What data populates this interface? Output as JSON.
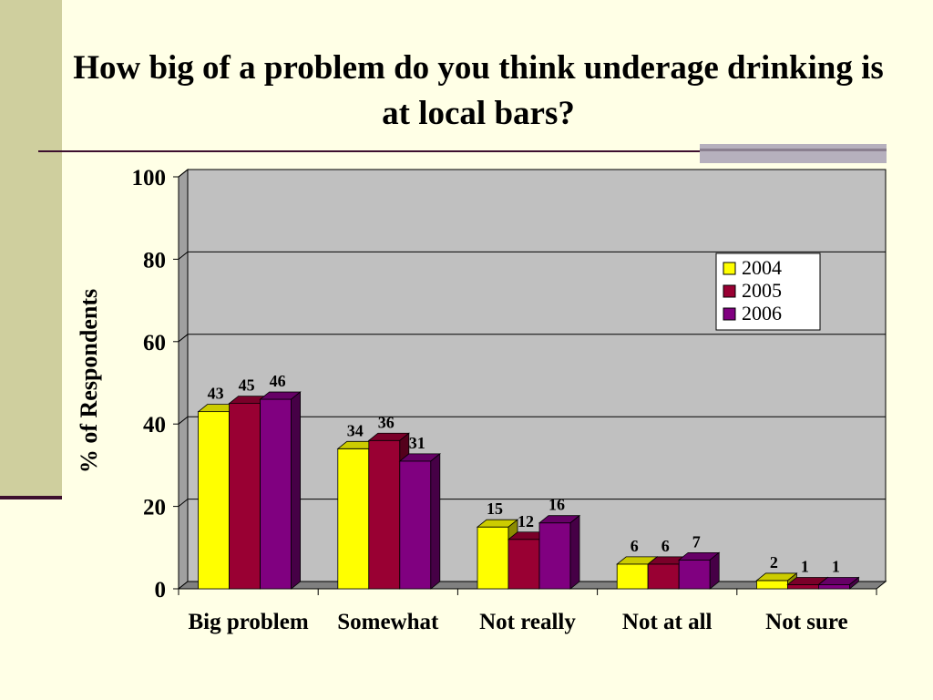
{
  "title": "How big of a problem do you think underage drinking is at local bars?",
  "chart_data": {
    "type": "bar",
    "categories": [
      "Big problem",
      "Somewhat",
      "Not really",
      "Not at all",
      "Not sure"
    ],
    "series": [
      {
        "name": "2004",
        "color": "#ffff00",
        "values": [
          43,
          34,
          15,
          6,
          2
        ]
      },
      {
        "name": "2005",
        "color": "#990033",
        "values": [
          45,
          36,
          12,
          6,
          1
        ]
      },
      {
        "name": "2006",
        "color": "#800080",
        "values": [
          46,
          31,
          16,
          7,
          1
        ]
      }
    ],
    "ylabel": "% of Respondents",
    "xlabel": "",
    "ylim": [
      0,
      100
    ],
    "yticks": [
      0,
      20,
      40,
      60,
      80,
      100
    ],
    "grid": true,
    "legend": "top-right",
    "plot_background": "#c0c0c0"
  }
}
